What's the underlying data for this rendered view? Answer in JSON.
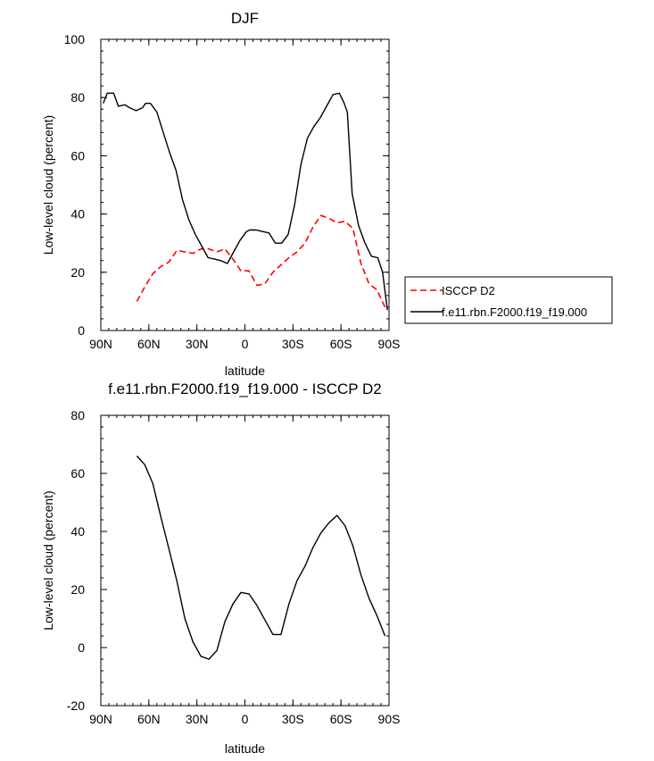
{
  "chart_data": [
    {
      "type": "line",
      "title": "DJF",
      "xlabel": "latitude",
      "ylabel": "Low-level cloud (percent)",
      "xlim": [
        90,
        -90
      ],
      "ylim": [
        0,
        100
      ],
      "xticks": [
        90,
        60,
        30,
        0,
        -30,
        -60,
        -90
      ],
      "xticklabels": [
        "90N",
        "60N",
        "30N",
        "0",
        "30S",
        "60S",
        "90S"
      ],
      "yticks": [
        0,
        20,
        40,
        60,
        80,
        100
      ],
      "yticklabels": [
        "0",
        "20",
        "40",
        "60",
        "80",
        "100"
      ],
      "legend_position": "right",
      "series": [
        {
          "name": "ISCCP D2",
          "color": "#ff0000",
          "dash": "dashed",
          "x": [
            67.5,
            62.5,
            57.5,
            52.5,
            47.5,
            42.5,
            37.5,
            32.5,
            27.5,
            22.5,
            17.5,
            12.5,
            7.5,
            2.5,
            -2.5,
            -7.5,
            -12.5,
            -17.5,
            -22.5,
            -27.5,
            -32.5,
            -37.5,
            -42.5,
            -47.5,
            -52.5,
            -57.5,
            -62.5,
            -67.5,
            -72.5,
            -77.5,
            -82.5,
            -87.5
          ],
          "y": [
            10,
            15,
            19.5,
            22,
            23.5,
            27.5,
            27,
            26.5,
            28,
            28,
            27,
            28,
            24.5,
            20.5,
            20.5,
            15.5,
            16,
            20,
            22.5,
            25,
            27,
            30,
            35.5,
            39.5,
            38.5,
            37,
            37.5,
            35,
            23,
            16,
            14,
            8
          ]
        },
        {
          "name": "f.e11.rbn.F2000.f19_f19.000",
          "color": "#000000",
          "dash": "solid",
          "x": [
            88.5,
            86,
            82,
            79,
            75,
            72,
            68,
            64,
            62,
            59,
            55,
            51,
            47,
            43,
            39,
            35,
            31,
            27,
            23,
            19,
            15,
            11,
            7,
            3,
            -1,
            -3,
            -7,
            -11,
            -15,
            -19,
            -23,
            -27,
            -31,
            -35,
            -39,
            -43,
            -47,
            -51,
            -55,
            -59,
            -62,
            -64,
            -67,
            -71,
            -75,
            -79,
            -83,
            -86,
            -89
          ],
          "y": [
            78,
            81.5,
            81.5,
            77,
            77.5,
            76.5,
            75.5,
            76.5,
            78,
            78,
            75,
            68,
            61,
            55,
            45,
            38,
            33,
            29,
            25,
            24.5,
            24,
            23,
            27,
            31,
            34,
            34.5,
            34.5,
            34,
            33.5,
            30,
            30,
            33,
            43,
            57,
            66,
            70,
            73,
            77,
            81,
            81.5,
            78,
            75,
            47,
            36,
            30,
            25.5,
            25,
            20,
            7
          ]
        }
      ]
    },
    {
      "type": "line",
      "title": "f.e11.rbn.F2000.f19_f19.000 - ISCCP D2",
      "xlabel": "latitude",
      "ylabel": "Low-level cloud (percent)",
      "xlim": [
        90,
        -90
      ],
      "ylim": [
        -20,
        80
      ],
      "xticks": [
        90,
        60,
        30,
        0,
        -30,
        -60,
        -90
      ],
      "xticklabels": [
        "90N",
        "60N",
        "30N",
        "0",
        "30S",
        "60S",
        "90S"
      ],
      "yticks": [
        -20,
        0,
        20,
        40,
        60,
        80
      ],
      "yticklabels": [
        "-20",
        "0",
        "20",
        "40",
        "60",
        "80"
      ],
      "series": [
        {
          "color": "#000000",
          "dash": "solid",
          "x": [
            67.5,
            62.5,
            57.5,
            52.5,
            47.5,
            42.5,
            37.5,
            32.5,
            27.5,
            22.5,
            17.5,
            12.5,
            7.5,
            2.5,
            -2.5,
            -7.5,
            -12.5,
            -17.5,
            -22.5,
            -27.5,
            -32.5,
            -37.5,
            -42.5,
            -47.5,
            -52.5,
            -57.5,
            -62.5,
            -67.5,
            -72.5,
            -77.5,
            -82.5,
            -87.5
          ],
          "y": [
            66,
            63,
            56.5,
            45,
            34,
            23,
            10,
            2,
            -3,
            -4,
            -1,
            9,
            15,
            19,
            18.5,
            14.5,
            9.5,
            4.5,
            4.5,
            15,
            23,
            28,
            34.5,
            39.5,
            43,
            45.5,
            42,
            35,
            25,
            17,
            11,
            4
          ]
        }
      ]
    }
  ]
}
